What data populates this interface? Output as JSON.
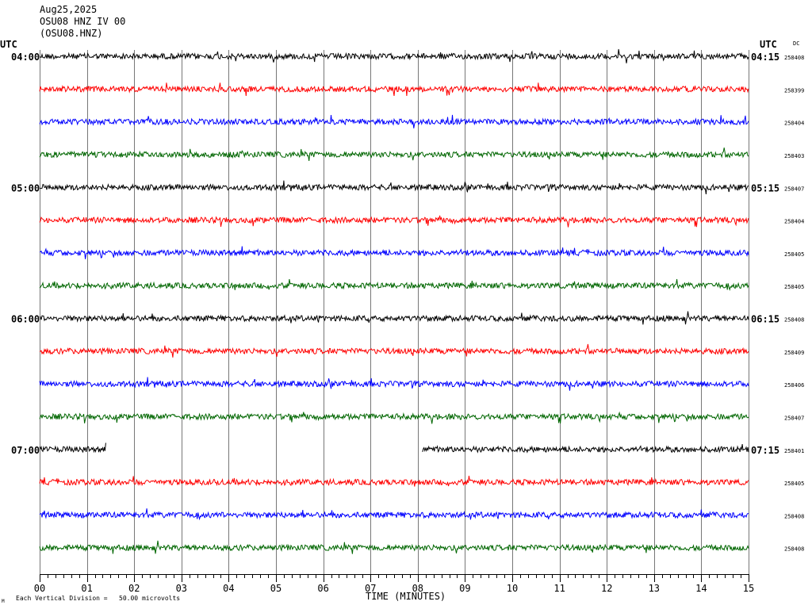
{
  "header": {
    "date": "Aug25,2025",
    "station_line": "OSU08 HNZ IV 00",
    "station_code": "(OSU08.HNZ)"
  },
  "left_axis_label": "UTC",
  "right_axis_label": "UTC",
  "dc_label": "DC",
  "footer": {
    "corner_mark": "M",
    "scale_note": "Each Vertical Division =   50.00 microvolts"
  },
  "chart_data": {
    "type": "line",
    "title": "",
    "xlabel": "TIME (MINUTES)",
    "ylabel": "",
    "xlim": [
      0,
      15
    ],
    "x_ticks": [
      "00",
      "01",
      "02",
      "03",
      "04",
      "05",
      "06",
      "07",
      "08",
      "09",
      "10",
      "11",
      "12",
      "13",
      "14",
      "15"
    ],
    "trace_colors": [
      "#000000",
      "#ff0000",
      "#0000ff",
      "#006600"
    ],
    "grid": true,
    "rows": [
      {
        "left": "04:00",
        "right": "04:15",
        "dc": "258408"
      },
      {
        "left": "",
        "right": "",
        "dc": "258399"
      },
      {
        "left": "",
        "right": "",
        "dc": "258404"
      },
      {
        "left": "",
        "right": "",
        "dc": "258403"
      },
      {
        "left": "05:00",
        "right": "05:15",
        "dc": "258407"
      },
      {
        "left": "",
        "right": "",
        "dc": "258404"
      },
      {
        "left": "",
        "right": "",
        "dc": "258405"
      },
      {
        "left": "",
        "right": "",
        "dc": "258405"
      },
      {
        "left": "06:00",
        "right": "06:15",
        "dc": "258408"
      },
      {
        "left": "",
        "right": "",
        "dc": "258409"
      },
      {
        "left": "",
        "right": "",
        "dc": "258406"
      },
      {
        "left": "",
        "right": "",
        "dc": "258407"
      },
      {
        "left": "07:00",
        "right": "07:15",
        "dc": "258401",
        "gaps": [
          [
            1.4,
            8.1
          ]
        ]
      },
      {
        "left": "",
        "right": "",
        "dc": "258405"
      },
      {
        "left": "",
        "right": "",
        "dc": "258408"
      },
      {
        "left": "",
        "right": "",
        "dc": "258408"
      }
    ]
  }
}
